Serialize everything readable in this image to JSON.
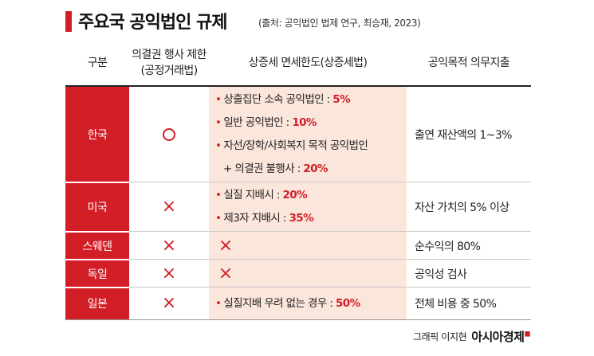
{
  "title": "주요국 공익법인 규제",
  "source": "(출처: 공익법인 법제 연구, 최승재, 2023)",
  "headers": {
    "category": "구분",
    "voting_line1": "의결권 행사 제한",
    "voting_line2": "(공정거래법)",
    "tax": "상증세 면세한도(상증세법)",
    "spending": "공익목적 의무지출"
  },
  "rows": [
    {
      "country": "한국",
      "voting": "○",
      "tax_items": [
        {
          "text": "상출집단 소속 공익법인 : ",
          "value": "5%"
        },
        {
          "text": "일반 공익법인 : ",
          "value": "10%"
        },
        {
          "text": "자선/장학/사회복지 목적 공익법인",
          "value": ""
        },
        {
          "text": "+ 의결권 불행사 : ",
          "value": "20%"
        }
      ],
      "spending": "출연 재산액의 1~3%"
    },
    {
      "country": "미국",
      "voting": "×",
      "tax_items": [
        {
          "text": "실질 지배시 : ",
          "value": "20%"
        },
        {
          "text": "제3자 지배시 : ",
          "value": "35%"
        }
      ],
      "spending": "자산 가치의 5% 이상"
    },
    {
      "country": "스웨덴",
      "voting": "×",
      "tax_mark": "×",
      "spending": "순수익의 80%"
    },
    {
      "country": "독일",
      "voting": "×",
      "tax_mark": "×",
      "spending": "공익성 검사"
    },
    {
      "country": "일본",
      "voting": "×",
      "tax_items": [
        {
          "text": "실질지배 우려 없는 경우 : ",
          "value": "50%"
        }
      ],
      "spending": "전체 비용 중 50%"
    }
  ],
  "credit": "그래픽 이지현",
  "brand": "아시아경제",
  "colors": {
    "accent": "#d21e27",
    "shade": "#fbe6dc"
  }
}
